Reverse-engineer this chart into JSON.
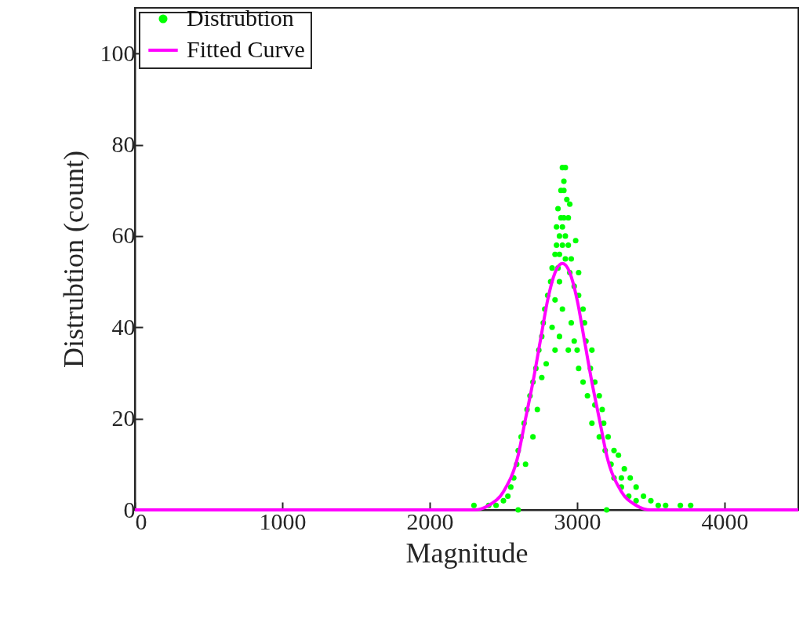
{
  "chart_data": {
    "type": "scatter",
    "xlabel": "Magnitude",
    "ylabel": "Distrubtion (count)",
    "xlim": [
      0,
      4500
    ],
    "xticks": [
      0,
      1000,
      2000,
      3000,
      4000
    ],
    "ylim": [
      0,
      110
    ],
    "yticks": [
      0,
      20,
      40,
      60,
      80,
      100
    ],
    "grid": false,
    "legend": "top left",
    "series": [
      {
        "name": "Distrubtion",
        "color": "#00ff00",
        "marker": "circle",
        "x": [
          2900,
          2920,
          2910,
          2890,
          2910,
          2930,
          2870,
          2950,
          2890,
          2910,
          2940,
          2860,
          2900,
          2880,
          2920,
          2990,
          2860,
          2900,
          2940,
          2850,
          2880,
          2920,
          2960,
          2830,
          2870,
          2950,
          3010,
          2820,
          2880,
          2980,
          2800,
          2850,
          3010,
          2780,
          2900,
          3040,
          2770,
          2830,
          2960,
          3050,
          2760,
          2880,
          2980,
          3060,
          2740,
          2850,
          2940,
          3000,
          3100,
          2720,
          2790,
          3010,
          3090,
          2700,
          2760,
          3040,
          3120,
          2680,
          3070,
          3150,
          3120,
          2660,
          2730,
          3170,
          2640,
          3100,
          3180,
          2620,
          2700,
          3150,
          3210,
          2600,
          3190,
          3250,
          3280,
          2590,
          2650,
          3230,
          3320,
          2570,
          3250,
          3300,
          3360,
          2550,
          3300,
          3400,
          2530,
          3350,
          3450,
          2500,
          3400,
          3500,
          2450,
          3550,
          3600,
          2300,
          2400,
          3700,
          3770,
          2600,
          3200
        ],
        "values": [
          75,
          75,
          72,
          70,
          70,
          68,
          66,
          67,
          64,
          64,
          64,
          62,
          62,
          60,
          60,
          59,
          58,
          58,
          58,
          56,
          56,
          55,
          55,
          53,
          53,
          52,
          52,
          50,
          50,
          49,
          47,
          46,
          47,
          44,
          44,
          44,
          41,
          40,
          41,
          41,
          38,
          38,
          37,
          37,
          35,
          35,
          35,
          35,
          35,
          31,
          32,
          31,
          31,
          28,
          29,
          28,
          28,
          25,
          25,
          25,
          23,
          22,
          22,
          22,
          19,
          19,
          19,
          16,
          16,
          16,
          16,
          13,
          13,
          13,
          12,
          10,
          10,
          10,
          9,
          7,
          7,
          7,
          7,
          5,
          5,
          5,
          3,
          3,
          3,
          2,
          2,
          2,
          1,
          1,
          1,
          1,
          1,
          1,
          1,
          0,
          0
        ]
      },
      {
        "name": "Fitted Curve",
        "type": "line",
        "color": "#ff00ff",
        "line_style": "solid",
        "x": [
          0,
          2000,
          2300,
          2400,
          2500,
          2600,
          2650,
          2700,
          2750,
          2800,
          2850,
          2900,
          2950,
          3000,
          3050,
          3100,
          3150,
          3200,
          3300,
          3400,
          3500,
          3800,
          4500
        ],
        "values": [
          0,
          0,
          0,
          1,
          4,
          12,
          20,
          28,
          37,
          46,
          52,
          54,
          52,
          46,
          37,
          28,
          20,
          12,
          4,
          1,
          0,
          0,
          0
        ]
      }
    ]
  }
}
